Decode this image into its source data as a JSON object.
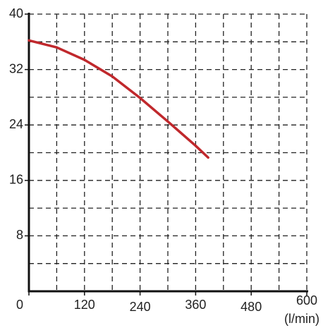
{
  "chart_data": {
    "type": "line",
    "x_label": "(l/min)",
    "x": [
      0,
      60,
      120,
      180,
      240,
      300,
      360,
      387
    ],
    "series": [
      {
        "color": "#c0282c",
        "values": [
          36.2,
          35.2,
          33.4,
          31,
          27.9,
          24.5,
          21,
          19.3
        ]
      }
    ],
    "xlim": [
      0,
      600
    ],
    "ylim": [
      0,
      40
    ],
    "xticks": [
      0,
      120,
      240,
      360,
      480,
      600
    ],
    "yticks": [
      8,
      16,
      24,
      32,
      40
    ],
    "xgrid": [
      60,
      180,
      300,
      420,
      540
    ],
    "ygrid": [
      4,
      12,
      20,
      28,
      36
    ],
    "grid": true
  }
}
